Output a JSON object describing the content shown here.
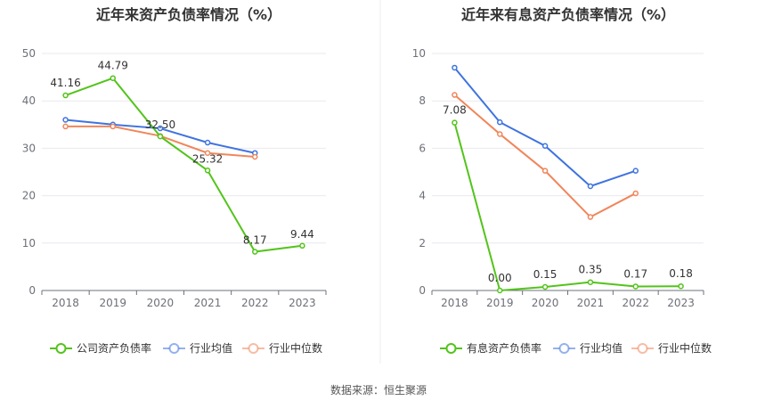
{
  "source": {
    "label": "数据来源：",
    "value": "恒生聚源"
  },
  "chart_data": [
    {
      "type": "line",
      "title": "近年来资产负债率情况（%）",
      "categories": [
        "2018",
        "2019",
        "2020",
        "2021",
        "2022",
        "2023"
      ],
      "ylim": [
        0,
        50
      ],
      "yticks": [
        0,
        10,
        20,
        30,
        40,
        50
      ],
      "series": [
        {
          "name": "公司资产负债率",
          "color": "#52c41a",
          "values": [
            41.16,
            44.79,
            32.5,
            25.32,
            8.17,
            9.44
          ],
          "labels": [
            "41.16",
            "44.79",
            "32.50",
            "25.32",
            "8.17",
            "9.44"
          ]
        },
        {
          "name": "行业均值",
          "color": "#3f73e0",
          "values": [
            36.0,
            35.0,
            34.2,
            31.2,
            29.0,
            null
          ]
        },
        {
          "name": "行业中位数",
          "color": "#f0865b",
          "values": [
            34.6,
            34.6,
            32.6,
            29.0,
            28.2,
            null
          ]
        }
      ]
    },
    {
      "type": "line",
      "title": "近年来有息资产负债率情况（%）",
      "categories": [
        "2018",
        "2019",
        "2020",
        "2021",
        "2022",
        "2023"
      ],
      "ylim": [
        0,
        10
      ],
      "yticks": [
        0,
        2,
        4,
        6,
        8,
        10
      ],
      "series": [
        {
          "name": "有息资产负债率",
          "color": "#52c41a",
          "values": [
            7.08,
            0.0,
            0.15,
            0.35,
            0.17,
            0.18
          ],
          "labels": [
            "7.08",
            "0.00",
            "0.15",
            "0.35",
            "0.17",
            "0.18"
          ]
        },
        {
          "name": "行业均值",
          "color": "#3f73e0",
          "values": [
            9.4,
            7.1,
            6.1,
            4.4,
            5.05,
            null
          ]
        },
        {
          "name": "行业中位数",
          "color": "#f0865b",
          "values": [
            8.25,
            6.6,
            5.05,
            3.1,
            4.1,
            null
          ]
        }
      ]
    }
  ]
}
